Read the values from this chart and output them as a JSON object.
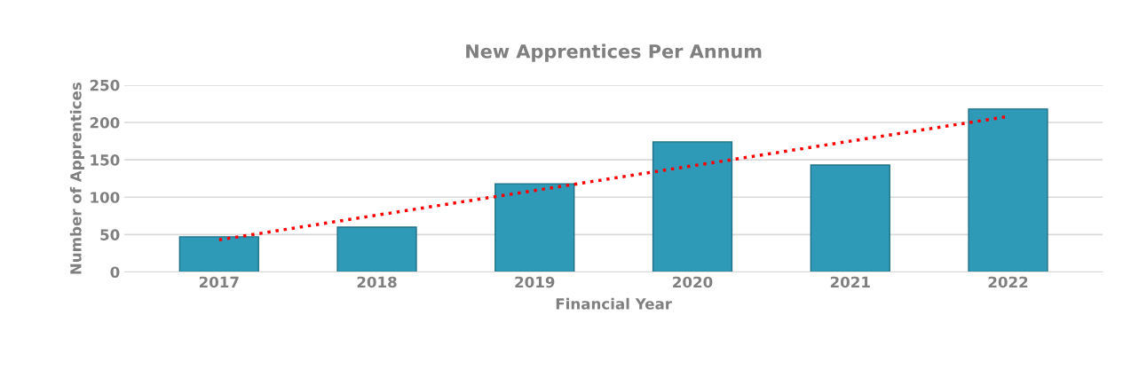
{
  "chart_data": {
    "type": "bar",
    "title": "New Apprentices Per Annum",
    "xlabel": "Financial Year",
    "ylabel": "Number of Apprentices",
    "categories": [
      "2017",
      "2018",
      "2019",
      "2020",
      "2021",
      "2022"
    ],
    "series": [
      {
        "color": "#2f9ab8",
        "values": [
          47,
          60,
          118,
          174,
          143,
          218
        ]
      },
      {
        "type": "line",
        "color": "#ff0000",
        "line_style": "dotted",
        "values": [
          43,
          76,
          109,
          142,
          175,
          208
        ]
      }
    ],
    "ylim": [
      0,
      250
    ],
    "yticks": [
      0,
      50,
      100,
      150,
      200,
      250
    ],
    "grid": "y"
  }
}
